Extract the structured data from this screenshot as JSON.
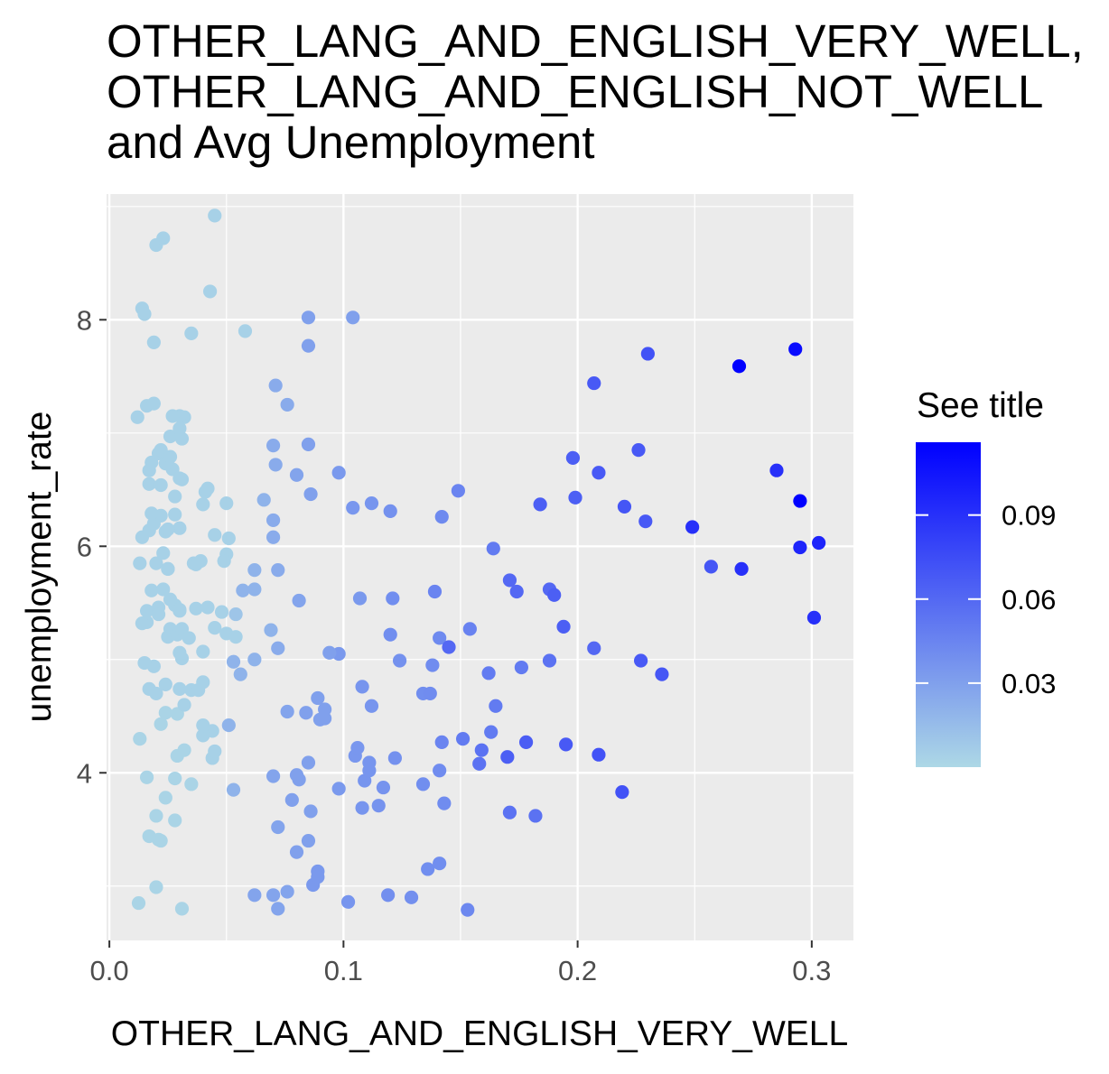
{
  "chart_data": {
    "type": "scatter",
    "title_lines": [
      "OTHER_LANG_AND_ENGLISH_VERY_WELL,",
      "OTHER_LANG_AND_ENGLISH_NOT_WELL",
      "and Avg Unemployment"
    ],
    "xlabel": "OTHER_LANG_AND_ENGLISH_VERY_WELL",
    "ylabel": "unemployment_rate",
    "xlim": [
      -0.0012,
      0.3178
    ],
    "ylim": [
      2.52,
      9.11
    ],
    "x_ticks": [
      0.0,
      0.1,
      0.2,
      0.3
    ],
    "x_tick_labels": [
      "0.0",
      "0.1",
      "0.2",
      "0.3"
    ],
    "y_ticks": [
      4,
      6,
      8
    ],
    "y_tick_labels": [
      "4",
      "6",
      "8"
    ],
    "grid": true,
    "panel_background": "#ebebeb",
    "grid_color": "#ffffff",
    "legend": {
      "title": "See title",
      "position": "right",
      "color_low": "#add8e6",
      "color_high": "#0000ff",
      "range": [
        0.0,
        0.116
      ],
      "breaks": [
        0.03,
        0.06,
        0.09
      ],
      "break_labels": [
        "0.03",
        "0.06",
        "0.09"
      ]
    },
    "points": [
      [
        0.0125,
        2.85,
        0.002
      ],
      [
        0.02,
        2.99,
        0.002
      ],
      [
        0.031,
        2.8,
        0.002
      ],
      [
        0.062,
        2.92,
        0.028
      ],
      [
        0.07,
        2.92,
        0.028
      ],
      [
        0.072,
        2.8,
        0.028
      ],
      [
        0.076,
        2.95,
        0.028
      ],
      [
        0.087,
        3.01,
        0.034
      ],
      [
        0.089,
        3.13,
        0.034
      ],
      [
        0.089,
        3.08,
        0.034
      ],
      [
        0.102,
        2.86,
        0.036
      ],
      [
        0.119,
        2.92,
        0.039
      ],
      [
        0.129,
        2.9,
        0.039
      ],
      [
        0.153,
        2.79,
        0.043
      ],
      [
        0.136,
        3.15,
        0.04
      ],
      [
        0.141,
        3.2,
        0.04
      ],
      [
        0.017,
        3.44,
        0.002
      ],
      [
        0.021,
        3.41,
        0.002
      ],
      [
        0.022,
        3.4,
        0.002
      ],
      [
        0.02,
        3.62,
        0.002
      ],
      [
        0.028,
        3.58,
        0.002
      ],
      [
        0.024,
        3.78,
        0.002
      ],
      [
        0.016,
        3.96,
        0.002
      ],
      [
        0.028,
        3.95,
        0.002
      ],
      [
        0.035,
        3.9,
        0.002
      ],
      [
        0.029,
        4.15,
        0.002
      ],
      [
        0.032,
        4.2,
        0.002
      ],
      [
        0.013,
        4.3,
        0.002
      ],
      [
        0.022,
        4.43,
        0.002
      ],
      [
        0.024,
        4.53,
        0.002
      ],
      [
        0.029,
        4.52,
        0.002
      ],
      [
        0.07,
        3.97,
        0.028
      ],
      [
        0.072,
        3.52,
        0.028
      ],
      [
        0.08,
        3.98,
        0.03
      ],
      [
        0.081,
        3.94,
        0.03
      ],
      [
        0.078,
        3.76,
        0.03
      ],
      [
        0.08,
        3.3,
        0.03
      ],
      [
        0.085,
        3.4,
        0.03
      ],
      [
        0.086,
        3.66,
        0.03
      ],
      [
        0.085,
        4.09,
        0.03
      ],
      [
        0.098,
        3.86,
        0.034
      ],
      [
        0.105,
        4.15,
        0.035
      ],
      [
        0.106,
        4.22,
        0.035
      ],
      [
        0.109,
        3.93,
        0.036
      ],
      [
        0.108,
        3.69,
        0.036
      ],
      [
        0.111,
        4.09,
        0.036
      ],
      [
        0.111,
        4.02,
        0.036
      ],
      [
        0.115,
        3.71,
        0.037
      ],
      [
        0.117,
        3.87,
        0.037
      ],
      [
        0.122,
        4.13,
        0.038
      ],
      [
        0.134,
        3.9,
        0.04
      ],
      [
        0.143,
        3.73,
        0.041
      ],
      [
        0.141,
        4.02,
        0.041
      ],
      [
        0.158,
        4.08,
        0.055
      ],
      [
        0.159,
        4.2,
        0.055
      ],
      [
        0.171,
        3.65,
        0.055
      ],
      [
        0.182,
        3.62,
        0.055
      ],
      [
        0.17,
        4.14,
        0.065
      ],
      [
        0.178,
        4.27,
        0.066
      ],
      [
        0.195,
        4.25,
        0.068
      ],
      [
        0.209,
        4.16,
        0.072
      ],
      [
        0.219,
        3.83,
        0.072
      ],
      [
        0.053,
        3.85,
        0.02
      ],
      [
        0.051,
        4.42,
        0.02
      ],
      [
        0.056,
        4.87,
        0.02
      ],
      [
        0.053,
        4.98,
        0.02
      ],
      [
        0.044,
        4.13,
        0.004
      ],
      [
        0.045,
        4.19,
        0.004
      ],
      [
        0.044,
        4.37,
        0.004
      ],
      [
        0.04,
        4.33,
        0.004
      ],
      [
        0.04,
        4.42,
        0.004
      ],
      [
        0.032,
        4.6,
        0.004
      ],
      [
        0.03,
        4.74,
        0.004
      ],
      [
        0.035,
        4.73,
        0.004
      ],
      [
        0.038,
        4.73,
        0.004
      ],
      [
        0.04,
        4.8,
        0.004
      ],
      [
        0.024,
        4.78,
        0.004
      ],
      [
        0.017,
        4.74,
        0.004
      ],
      [
        0.02,
        4.7,
        0.004
      ],
      [
        0.019,
        4.94,
        0.004
      ],
      [
        0.015,
        4.97,
        0.004
      ],
      [
        0.016,
        5.33,
        0.004
      ],
      [
        0.014,
        5.32,
        0.004
      ],
      [
        0.076,
        4.54,
        0.028
      ],
      [
        0.084,
        4.53,
        0.03
      ],
      [
        0.089,
        4.66,
        0.03
      ],
      [
        0.092,
        4.56,
        0.03
      ],
      [
        0.092,
        4.48,
        0.03
      ],
      [
        0.09,
        4.47,
        0.03
      ],
      [
        0.098,
        5.05,
        0.034
      ],
      [
        0.108,
        4.76,
        0.036
      ],
      [
        0.112,
        4.59,
        0.036
      ],
      [
        0.124,
        4.99,
        0.038
      ],
      [
        0.12,
        5.22,
        0.04
      ],
      [
        0.134,
        4.7,
        0.04
      ],
      [
        0.137,
        4.7,
        0.041
      ],
      [
        0.138,
        4.95,
        0.041
      ],
      [
        0.141,
        5.19,
        0.042
      ],
      [
        0.142,
        4.27,
        0.045
      ],
      [
        0.151,
        4.3,
        0.05
      ],
      [
        0.162,
        4.88,
        0.05
      ],
      [
        0.165,
        4.59,
        0.05
      ],
      [
        0.163,
        4.36,
        0.05
      ],
      [
        0.176,
        4.93,
        0.05
      ],
      [
        0.188,
        4.99,
        0.055
      ],
      [
        0.154,
        5.27,
        0.046
      ],
      [
        0.145,
        5.11,
        0.06
      ],
      [
        0.171,
        5.7,
        0.06
      ],
      [
        0.174,
        5.6,
        0.06
      ],
      [
        0.188,
        5.62,
        0.06
      ],
      [
        0.19,
        5.57,
        0.065
      ],
      [
        0.194,
        5.29,
        0.065
      ],
      [
        0.207,
        5.1,
        0.06
      ],
      [
        0.227,
        4.99,
        0.068
      ],
      [
        0.236,
        4.87,
        0.07
      ],
      [
        0.04,
        5.07,
        0.004
      ],
      [
        0.037,
        5.45,
        0.004
      ],
      [
        0.042,
        5.46,
        0.004
      ],
      [
        0.045,
        5.28,
        0.004
      ],
      [
        0.048,
        5.42,
        0.004
      ],
      [
        0.05,
        5.23,
        0.004
      ],
      [
        0.054,
        5.2,
        0.004
      ],
      [
        0.054,
        5.4,
        0.01
      ],
      [
        0.062,
        5.0,
        0.02
      ],
      [
        0.069,
        5.26,
        0.02
      ],
      [
        0.072,
        5.1,
        0.024
      ],
      [
        0.081,
        5.52,
        0.028
      ],
      [
        0.094,
        5.06,
        0.03
      ],
      [
        0.107,
        5.54,
        0.034
      ],
      [
        0.121,
        5.54,
        0.04
      ],
      [
        0.139,
        5.6,
        0.045
      ],
      [
        0.016,
        5.43,
        0.004
      ],
      [
        0.021,
        5.46,
        0.004
      ],
      [
        0.028,
        5.48,
        0.004
      ],
      [
        0.026,
        5.53,
        0.004
      ],
      [
        0.03,
        5.43,
        0.004
      ],
      [
        0.026,
        5.27,
        0.004
      ],
      [
        0.025,
        5.2,
        0.004
      ],
      [
        0.029,
        5.22,
        0.004
      ],
      [
        0.031,
        5.27,
        0.004
      ],
      [
        0.03,
        5.06,
        0.004
      ],
      [
        0.031,
        5.01,
        0.004
      ],
      [
        0.034,
        5.19,
        0.004
      ],
      [
        0.03,
        5.44,
        0.004
      ],
      [
        0.021,
        5.4,
        0.004
      ],
      [
        0.018,
        5.61,
        0.004
      ],
      [
        0.023,
        5.62,
        0.004
      ],
      [
        0.025,
        5.8,
        0.004
      ],
      [
        0.02,
        5.85,
        0.004
      ],
      [
        0.023,
        5.94,
        0.004
      ],
      [
        0.025,
        5.8,
        0.004
      ],
      [
        0.013,
        5.85,
        0.004
      ],
      [
        0.03,
        6.16,
        0.004
      ],
      [
        0.036,
        5.85,
        0.004
      ],
      [
        0.037,
        5.84,
        0.004
      ],
      [
        0.039,
        5.87,
        0.004
      ],
      [
        0.045,
        6.1,
        0.004
      ],
      [
        0.05,
        5.93,
        0.004
      ],
      [
        0.049,
        5.87,
        0.004
      ],
      [
        0.051,
        6.07,
        0.004
      ],
      [
        0.057,
        5.61,
        0.02
      ],
      [
        0.062,
        5.79,
        0.02
      ],
      [
        0.062,
        5.62,
        0.02
      ],
      [
        0.072,
        5.79,
        0.024
      ],
      [
        0.014,
        6.08,
        0.004
      ],
      [
        0.017,
        6.14,
        0.004
      ],
      [
        0.019,
        6.2,
        0.004
      ],
      [
        0.022,
        6.27,
        0.004
      ],
      [
        0.024,
        6.13,
        0.004
      ],
      [
        0.028,
        6.28,
        0.004
      ],
      [
        0.018,
        6.29,
        0.004
      ],
      [
        0.017,
        6.55,
        0.004
      ],
      [
        0.022,
        6.54,
        0.004
      ],
      [
        0.027,
        6.68,
        0.004
      ],
      [
        0.03,
        6.6,
        0.004
      ],
      [
        0.031,
        6.59,
        0.004
      ],
      [
        0.028,
        6.44,
        0.004
      ],
      [
        0.025,
        6.15,
        0.004
      ],
      [
        0.04,
        6.37,
        0.004
      ],
      [
        0.041,
        6.48,
        0.004
      ],
      [
        0.042,
        6.51,
        0.004
      ],
      [
        0.017,
        6.67,
        0.004
      ],
      [
        0.018,
        6.74,
        0.004
      ],
      [
        0.021,
        6.82,
        0.004
      ],
      [
        0.022,
        6.85,
        0.004
      ],
      [
        0.024,
        6.73,
        0.004
      ],
      [
        0.026,
        6.79,
        0.004
      ],
      [
        0.026,
        6.97,
        0.004
      ],
      [
        0.031,
        6.95,
        0.004
      ],
      [
        0.032,
        7.14,
        0.004
      ],
      [
        0.03,
        7.15,
        0.004
      ],
      [
        0.016,
        7.24,
        0.004
      ],
      [
        0.019,
        7.26,
        0.004
      ],
      [
        0.012,
        7.14,
        0.004
      ],
      [
        0.027,
        7.15,
        0.004
      ],
      [
        0.03,
        7.04,
        0.004
      ],
      [
        0.05,
        6.38,
        0.004
      ],
      [
        0.066,
        6.41,
        0.02
      ],
      [
        0.07,
        6.23,
        0.024
      ],
      [
        0.07,
        6.08,
        0.024
      ],
      [
        0.071,
        6.72,
        0.024
      ],
      [
        0.07,
        6.89,
        0.024
      ],
      [
        0.08,
        6.63,
        0.028
      ],
      [
        0.085,
        6.9,
        0.03
      ],
      [
        0.086,
        6.46,
        0.03
      ],
      [
        0.098,
        6.65,
        0.034
      ],
      [
        0.104,
        6.34,
        0.035
      ],
      [
        0.112,
        6.38,
        0.036
      ],
      [
        0.12,
        6.31,
        0.038
      ],
      [
        0.142,
        6.26,
        0.042
      ],
      [
        0.149,
        6.49,
        0.045
      ],
      [
        0.164,
        5.98,
        0.05
      ],
      [
        0.014,
        8.1,
        0.004
      ],
      [
        0.015,
        8.05,
        0.004
      ],
      [
        0.019,
        7.8,
        0.004
      ],
      [
        0.035,
        7.88,
        0.004
      ],
      [
        0.058,
        7.9,
        0.004
      ],
      [
        0.071,
        7.42,
        0.024
      ],
      [
        0.076,
        7.25,
        0.024
      ],
      [
        0.085,
        8.02,
        0.03
      ],
      [
        0.085,
        7.77,
        0.03
      ],
      [
        0.104,
        8.02,
        0.03
      ],
      [
        0.02,
        8.66,
        0.004
      ],
      [
        0.023,
        8.72,
        0.004
      ],
      [
        0.043,
        8.25,
        0.004
      ],
      [
        0.045,
        8.92,
        0.004
      ],
      [
        0.184,
        6.37,
        0.065
      ],
      [
        0.198,
        6.78,
        0.065
      ],
      [
        0.199,
        6.43,
        0.065
      ],
      [
        0.207,
        7.44,
        0.068
      ],
      [
        0.209,
        6.65,
        0.068
      ],
      [
        0.22,
        6.35,
        0.07
      ],
      [
        0.226,
        6.85,
        0.068
      ],
      [
        0.229,
        6.22,
        0.068
      ],
      [
        0.23,
        7.7,
        0.072
      ],
      [
        0.249,
        6.17,
        0.09
      ],
      [
        0.257,
        5.82,
        0.07
      ],
      [
        0.269,
        7.59,
        0.116
      ],
      [
        0.27,
        5.8,
        0.09
      ],
      [
        0.285,
        6.67,
        0.09
      ],
      [
        0.293,
        7.74,
        0.11
      ],
      [
        0.295,
        6.4,
        0.116
      ],
      [
        0.295,
        5.99,
        0.096
      ],
      [
        0.303,
        6.03,
        0.096
      ],
      [
        0.301,
        5.37,
        0.09
      ]
    ]
  }
}
